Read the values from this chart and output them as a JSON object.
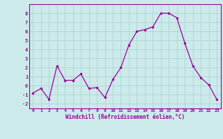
{
  "x": [
    0,
    1,
    2,
    3,
    4,
    5,
    6,
    7,
    8,
    9,
    10,
    11,
    12,
    13,
    14,
    15,
    16,
    17,
    18,
    19,
    20,
    21,
    22,
    23
  ],
  "y": [
    -0.8,
    -0.3,
    -1.5,
    2.2,
    0.6,
    0.6,
    1.3,
    -0.3,
    -0.2,
    -1.3,
    0.7,
    2.0,
    4.5,
    6.0,
    6.2,
    6.5,
    8.0,
    8.0,
    7.5,
    4.7,
    2.2,
    0.9,
    0.1,
    -1.5
  ],
  "line_color": "#990099",
  "marker_color": "#990099",
  "bg_color": "#cceaea",
  "grid_color": "#aad4d4",
  "xlabel": "Windchill (Refroidissement éolien,°C)",
  "xlabel_color": "#990099",
  "tick_color": "#990099",
  "ylim": [
    -2.5,
    9.0
  ],
  "xlim": [
    -0.5,
    23.5
  ],
  "yticks": [
    -2,
    -1,
    0,
    1,
    2,
    3,
    4,
    5,
    6,
    7,
    8
  ],
  "xticks": [
    0,
    1,
    2,
    3,
    4,
    5,
    6,
    7,
    8,
    9,
    10,
    11,
    12,
    13,
    14,
    15,
    16,
    17,
    18,
    19,
    20,
    21,
    22,
    23
  ],
  "figsize": [
    3.2,
    2.0
  ],
  "dpi": 100
}
